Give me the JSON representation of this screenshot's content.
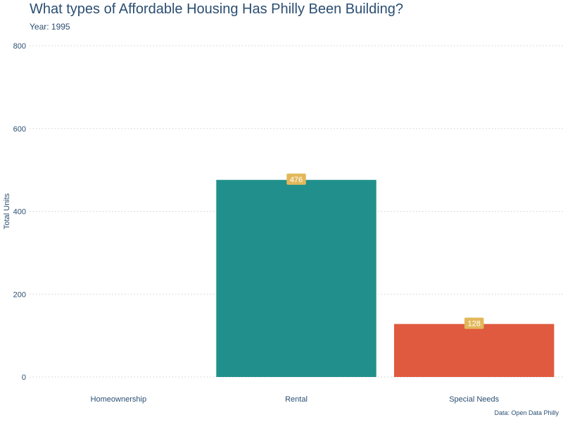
{
  "colors": {
    "text": "#2b4e72",
    "grid": "#d0d0d0",
    "label_bg": "#e3b85a",
    "label_text": "#ffffff"
  },
  "header": {
    "title": "What types of Affordable Housing Has Philly Been Building?",
    "subtitle": "Year: 1995"
  },
  "footer": {
    "caption": "Data: Open Data Philly"
  },
  "chart_data": {
    "type": "bar",
    "categories": [
      "Homeownership",
      "Rental",
      "Special Needs"
    ],
    "values": [
      0,
      476,
      128
    ],
    "data_labels": [
      "",
      "476",
      "128"
    ],
    "bar_colors": [
      "#21908c",
      "#21908c",
      "#e05a3f"
    ],
    "xlabel": "",
    "ylabel": "Total Units",
    "ylim": [
      0,
      800
    ],
    "yticks": [
      0,
      200,
      400,
      600,
      800
    ],
    "grid": true,
    "legend": "none"
  }
}
